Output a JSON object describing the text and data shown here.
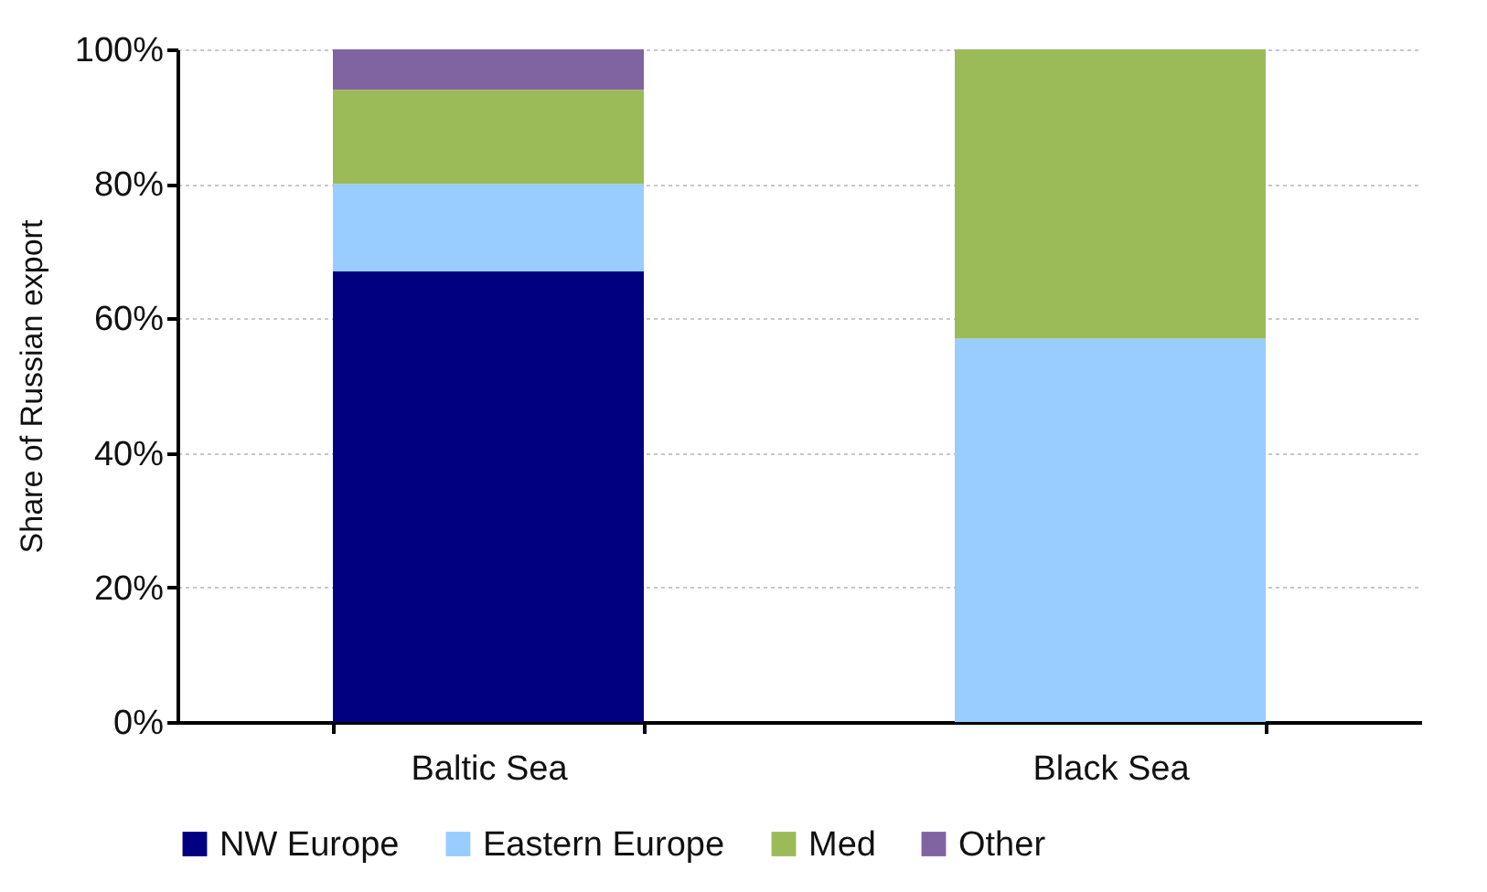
{
  "chart_data": {
    "type": "bar",
    "stacked": true,
    "ylabel": "Share of Russian export",
    "categories": [
      "Baltic Sea",
      "Black Sea"
    ],
    "series": [
      {
        "name": "NW Europe",
        "color": "#000080",
        "values": [
          67,
          0
        ]
      },
      {
        "name": "Eastern Europe",
        "color": "#99ccff",
        "values": [
          13,
          57
        ]
      },
      {
        "name": "Med",
        "color": "#9bbb59",
        "values": [
          14,
          43
        ]
      },
      {
        "name": "Other",
        "color": "#8064a2",
        "values": [
          6,
          0
        ]
      }
    ],
    "ylim": [
      0,
      100
    ],
    "yticks": [
      {
        "value": 0,
        "label": "0%"
      },
      {
        "value": 20,
        "label": "20%"
      },
      {
        "value": 40,
        "label": "40%"
      },
      {
        "value": 60,
        "label": "60%"
      },
      {
        "value": 80,
        "label": "80%"
      },
      {
        "value": 100,
        "label": "100%"
      }
    ],
    "grid": "y",
    "legend": "bottom"
  }
}
